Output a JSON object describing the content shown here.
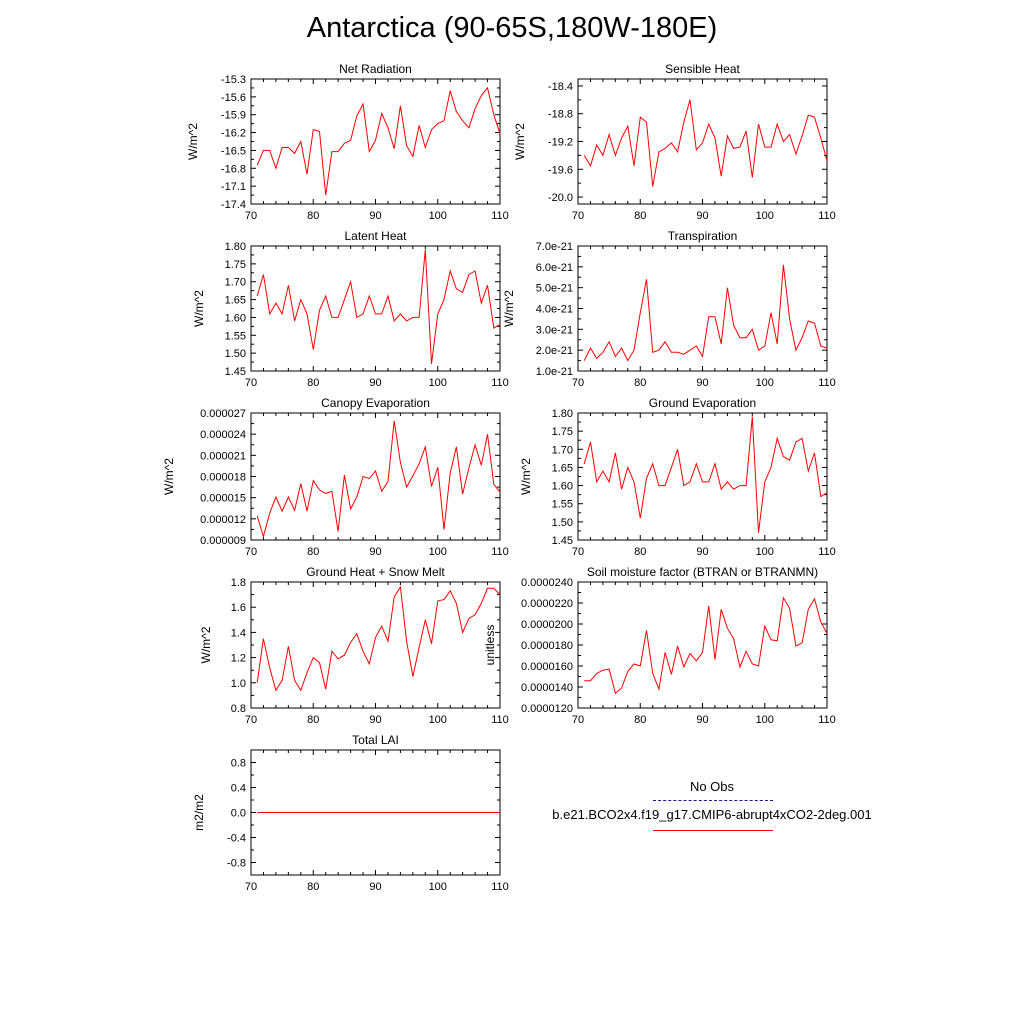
{
  "title": "Antarctica (90-65S,180W-180E)",
  "legend": {
    "obs_label": "No Obs",
    "case_label": "b.e21.BCO2x4.f19_g17.CMIP6-abrupt4xCO2-2deg.001",
    "obs_color": "#1a1a9e",
    "case_color": "#ff0000"
  },
  "chart_data": [
    {
      "type": "line",
      "title": "Net Radiation",
      "ylabel": "W/m^2",
      "xlim": [
        70,
        110
      ],
      "ylim": [
        -17.4,
        -15.3
      ],
      "xticks": [
        "70",
        "80",
        "90",
        "100",
        "110"
      ],
      "xtick_values": [
        70,
        80,
        90,
        100,
        110
      ],
      "yticks": [
        "-17.4",
        "-17.1",
        "-16.8",
        "-16.5",
        "-16.2",
        "-15.9",
        "-15.6",
        "-15.3"
      ],
      "ytick_values": [
        -17.4,
        -17.1,
        -16.8,
        -16.5,
        -16.2,
        -15.9,
        -15.6,
        -15.3
      ],
      "x": [
        71,
        72,
        73,
        74,
        75,
        76,
        77,
        78,
        79,
        80,
        81,
        82,
        83,
        84,
        85,
        86,
        87,
        88,
        89,
        90,
        91,
        92,
        93,
        94,
        95,
        96,
        97,
        98,
        99,
        100,
        101,
        102,
        103,
        104,
        105,
        106,
        107,
        108,
        109,
        110
      ],
      "values": [
        -16.75,
        -16.5,
        -16.5,
        -16.8,
        -16.45,
        -16.45,
        -16.55,
        -16.35,
        -16.9,
        -16.15,
        -16.18,
        -17.25,
        -16.52,
        -16.52,
        -16.38,
        -16.33,
        -15.92,
        -15.72,
        -16.52,
        -16.33,
        -15.88,
        -16.12,
        -16.47,
        -15.75,
        -16.42,
        -16.6,
        -16.08,
        -16.45,
        -16.15,
        -16.05,
        -16.0,
        -15.5,
        -15.85,
        -16.0,
        -16.12,
        -15.8,
        -15.58,
        -15.45,
        -15.9,
        -16.22
      ]
    },
    {
      "type": "line",
      "title": "Sensible Heat",
      "ylabel": "W/m^2",
      "xlim": [
        70,
        110
      ],
      "ylim": [
        -20.1,
        -18.3
      ],
      "xticks": [
        "70",
        "80",
        "90",
        "100",
        "110"
      ],
      "xtick_values": [
        70,
        80,
        90,
        100,
        110
      ],
      "yticks": [
        "-20.0",
        "-19.6",
        "-19.2",
        "-18.8",
        "-18.4"
      ],
      "ytick_values": [
        -20.0,
        -19.6,
        -19.2,
        -18.8,
        -18.4
      ],
      "x": [
        71,
        72,
        73,
        74,
        75,
        76,
        77,
        78,
        79,
        80,
        81,
        82,
        83,
        84,
        85,
        86,
        87,
        88,
        89,
        90,
        91,
        92,
        93,
        94,
        95,
        96,
        97,
        98,
        99,
        100,
        101,
        102,
        103,
        104,
        105,
        106,
        107,
        108,
        109,
        110
      ],
      "values": [
        -19.4,
        -19.55,
        -19.25,
        -19.4,
        -19.1,
        -19.4,
        -19.15,
        -18.98,
        -19.55,
        -18.85,
        -18.92,
        -19.85,
        -19.35,
        -19.3,
        -19.22,
        -19.35,
        -18.92,
        -18.6,
        -19.32,
        -19.22,
        -18.95,
        -19.15,
        -19.7,
        -19.12,
        -19.3,
        -19.28,
        -19.05,
        -19.72,
        -18.95,
        -19.28,
        -19.28,
        -18.95,
        -19.2,
        -19.1,
        -19.38,
        -19.12,
        -18.82,
        -18.85,
        -19.15,
        -19.48
      ]
    },
    {
      "type": "line",
      "title": "Latent Heat",
      "ylabel": "W/m^2",
      "xlim": [
        70,
        110
      ],
      "ylim": [
        1.45,
        1.8
      ],
      "xticks": [
        "70",
        "80",
        "90",
        "100",
        "110"
      ],
      "xtick_values": [
        70,
        80,
        90,
        100,
        110
      ],
      "yticks": [
        "1.45",
        "1.50",
        "1.55",
        "1.60",
        "1.65",
        "1.70",
        "1.75",
        "1.80"
      ],
      "ytick_values": [
        1.45,
        1.5,
        1.55,
        1.6,
        1.65,
        1.7,
        1.75,
        1.8
      ],
      "x": [
        71,
        72,
        73,
        74,
        75,
        76,
        77,
        78,
        79,
        80,
        81,
        82,
        83,
        84,
        85,
        86,
        87,
        88,
        89,
        90,
        91,
        92,
        93,
        94,
        95,
        96,
        97,
        98,
        99,
        100,
        101,
        102,
        103,
        104,
        105,
        106,
        107,
        108,
        109,
        110
      ],
      "values": [
        1.66,
        1.72,
        1.61,
        1.64,
        1.61,
        1.69,
        1.59,
        1.65,
        1.61,
        1.51,
        1.62,
        1.66,
        1.6,
        1.6,
        1.65,
        1.7,
        1.6,
        1.61,
        1.66,
        1.61,
        1.61,
        1.66,
        1.59,
        1.61,
        1.59,
        1.6,
        1.6,
        1.79,
        1.47,
        1.61,
        1.65,
        1.73,
        1.68,
        1.67,
        1.72,
        1.73,
        1.64,
        1.69,
        1.57,
        1.58
      ]
    },
    {
      "type": "line",
      "title": "Transpiration",
      "ylabel": "W/m^2",
      "xlim": [
        70,
        110
      ],
      "ylim": [
        1e-21,
        7e-21
      ],
      "xticks": [
        "70",
        "80",
        "90",
        "100",
        "110"
      ],
      "xtick_values": [
        70,
        80,
        90,
        100,
        110
      ],
      "yticks": [
        "1.0e-21",
        "2.0e-21",
        "3.0e-21",
        "4.0e-21",
        "5.0e-21",
        "6.0e-21",
        "7.0e-21"
      ],
      "ytick_values": [
        1e-21,
        2e-21,
        3e-21,
        4e-21,
        5e-21,
        6e-21,
        7e-21
      ],
      "x": [
        71,
        72,
        73,
        74,
        75,
        76,
        77,
        78,
        79,
        80,
        81,
        82,
        83,
        84,
        85,
        86,
        87,
        88,
        89,
        90,
        91,
        92,
        93,
        94,
        95,
        96,
        97,
        98,
        99,
        100,
        101,
        102,
        103,
        104,
        105,
        106,
        107,
        108,
        109,
        110
      ],
      "values": [
        1.5e-21,
        2.1e-21,
        1.6e-21,
        1.9e-21,
        2.4e-21,
        1.7e-21,
        2.1e-21,
        1.5e-21,
        2e-21,
        3.8e-21,
        5.4e-21,
        1.9e-21,
        2e-21,
        2.4e-21,
        1.9e-21,
        1.9e-21,
        1.8e-21,
        2e-21,
        2.2e-21,
        1.7e-21,
        3.6e-21,
        3.6e-21,
        2.3e-21,
        5e-21,
        3.2e-21,
        2.6e-21,
        2.6e-21,
        3e-21,
        2e-21,
        2.2e-21,
        3.8e-21,
        2.3e-21,
        6.1e-21,
        3.5e-21,
        2e-21,
        2.6e-21,
        3.4e-21,
        3.3e-21,
        2.2e-21,
        2.1e-21
      ]
    },
    {
      "type": "line",
      "title": "Canopy Evaporation",
      "ylabel": "W/m^2",
      "xlim": [
        70,
        110
      ],
      "ylim": [
        9e-06,
        2.7e-05
      ],
      "xticks": [
        "70",
        "80",
        "90",
        "100",
        "110"
      ],
      "xtick_values": [
        70,
        80,
        90,
        100,
        110
      ],
      "yticks": [
        "0.000009",
        "0.000012",
        "0.000015",
        "0.000018",
        "0.000021",
        "0.000024",
        "0.000027"
      ],
      "ytick_values": [
        9e-06,
        1.2e-05,
        1.5e-05,
        1.8e-05,
        2.1e-05,
        2.4e-05,
        2.7e-05
      ],
      "x": [
        71,
        72,
        73,
        74,
        75,
        76,
        77,
        78,
        79,
        80,
        81,
        82,
        83,
        84,
        85,
        86,
        87,
        88,
        89,
        90,
        91,
        92,
        93,
        94,
        95,
        96,
        97,
        98,
        99,
        100,
        101,
        102,
        103,
        104,
        105,
        106,
        107,
        108,
        109,
        110
      ],
      "values": [
        1.24e-05,
        9.5e-06,
        1.28e-05,
        1.51e-05,
        1.31e-05,
        1.51e-05,
        1.32e-05,
        1.7e-05,
        1.31e-05,
        1.74e-05,
        1.61e-05,
        1.56e-05,
        1.59e-05,
        1.02e-05,
        1.82e-05,
        1.34e-05,
        1.51e-05,
        1.8e-05,
        1.77e-05,
        1.88e-05,
        1.59e-05,
        1.73e-05,
        2.59e-05,
        2e-05,
        1.65e-05,
        1.81e-05,
        1.98e-05,
        2.22e-05,
        1.66e-05,
        1.93e-05,
        1.05e-05,
        1.85e-05,
        2.22e-05,
        1.55e-05,
        1.92e-05,
        2.25e-05,
        1.96e-05,
        2.4e-05,
        1.69e-05,
        1.58e-05
      ]
    },
    {
      "type": "line",
      "title": "Ground Evaporation",
      "ylabel": "W/m^2",
      "xlim": [
        70,
        110
      ],
      "ylim": [
        1.45,
        1.8
      ],
      "xticks": [
        "70",
        "80",
        "90",
        "100",
        "110"
      ],
      "xtick_values": [
        70,
        80,
        90,
        100,
        110
      ],
      "yticks": [
        "1.45",
        "1.50",
        "1.55",
        "1.60",
        "1.65",
        "1.70",
        "1.75",
        "1.80"
      ],
      "ytick_values": [
        1.45,
        1.5,
        1.55,
        1.6,
        1.65,
        1.7,
        1.75,
        1.8
      ],
      "x": [
        71,
        72,
        73,
        74,
        75,
        76,
        77,
        78,
        79,
        80,
        81,
        82,
        83,
        84,
        85,
        86,
        87,
        88,
        89,
        90,
        91,
        92,
        93,
        94,
        95,
        96,
        97,
        98,
        99,
        100,
        101,
        102,
        103,
        104,
        105,
        106,
        107,
        108,
        109,
        110
      ],
      "values": [
        1.66,
        1.72,
        1.61,
        1.64,
        1.61,
        1.69,
        1.59,
        1.65,
        1.61,
        1.51,
        1.62,
        1.66,
        1.6,
        1.6,
        1.65,
        1.7,
        1.6,
        1.61,
        1.66,
        1.61,
        1.61,
        1.66,
        1.59,
        1.61,
        1.59,
        1.6,
        1.6,
        1.79,
        1.47,
        1.61,
        1.65,
        1.73,
        1.68,
        1.67,
        1.72,
        1.73,
        1.64,
        1.69,
        1.57,
        1.58
      ]
    },
    {
      "type": "line",
      "title": "Ground Heat + Snow Melt",
      "ylabel": "W/m^2",
      "xlim": [
        70,
        110
      ],
      "ylim": [
        0.8,
        1.8
      ],
      "xticks": [
        "70",
        "80",
        "90",
        "100",
        "110"
      ],
      "xtick_values": [
        70,
        80,
        90,
        100,
        110
      ],
      "yticks": [
        "0.8",
        "1.0",
        "1.2",
        "1.4",
        "1.6",
        "1.8"
      ],
      "ytick_values": [
        0.8,
        1.0,
        1.2,
        1.4,
        1.6,
        1.8
      ],
      "x": [
        71,
        72,
        73,
        74,
        75,
        76,
        77,
        78,
        79,
        80,
        81,
        82,
        83,
        84,
        85,
        86,
        87,
        88,
        89,
        90,
        91,
        92,
        93,
        94,
        95,
        96,
        97,
        98,
        99,
        100,
        101,
        102,
        103,
        104,
        105,
        106,
        107,
        108,
        109,
        110
      ],
      "values": [
        1.0,
        1.35,
        1.12,
        0.94,
        1.02,
        1.29,
        1.02,
        0.94,
        1.08,
        1.2,
        1.16,
        0.95,
        1.25,
        1.19,
        1.22,
        1.32,
        1.39,
        1.25,
        1.15,
        1.36,
        1.45,
        1.33,
        1.68,
        1.76,
        1.33,
        1.05,
        1.28,
        1.5,
        1.31,
        1.65,
        1.66,
        1.73,
        1.63,
        1.4,
        1.51,
        1.54,
        1.63,
        1.75,
        1.75,
        1.7
      ]
    },
    {
      "type": "line",
      "title": "Soil moisture factor (BTRAN or BTRANMN)",
      "ylabel": "unitless",
      "xlim": [
        70,
        110
      ],
      "ylim": [
        1.2e-05,
        2.4e-05
      ],
      "xticks": [
        "70",
        "80",
        "90",
        "100",
        "110"
      ],
      "xtick_values": [
        70,
        80,
        90,
        100,
        110
      ],
      "yticks": [
        "0.0000120",
        "0.0000140",
        "0.0000160",
        "0.0000180",
        "0.0000200",
        "0.0000220",
        "0.0000240"
      ],
      "ytick_values": [
        1.2e-05,
        1.4e-05,
        1.6e-05,
        1.8e-05,
        2e-05,
        2.2e-05,
        2.4e-05
      ],
      "x": [
        71,
        72,
        73,
        74,
        75,
        76,
        77,
        78,
        79,
        80,
        81,
        82,
        83,
        84,
        85,
        86,
        87,
        88,
        89,
        90,
        91,
        92,
        93,
        94,
        95,
        96,
        97,
        98,
        99,
        100,
        101,
        102,
        103,
        104,
        105,
        106,
        107,
        108,
        109,
        110
      ],
      "values": [
        1.46e-05,
        1.46e-05,
        1.53e-05,
        1.56e-05,
        1.57e-05,
        1.34e-05,
        1.39e-05,
        1.55e-05,
        1.62e-05,
        1.6e-05,
        1.94e-05,
        1.53e-05,
        1.38e-05,
        1.73e-05,
        1.52e-05,
        1.79e-05,
        1.59e-05,
        1.72e-05,
        1.65e-05,
        1.73e-05,
        2.17e-05,
        1.66e-05,
        2.14e-05,
        1.96e-05,
        1.86e-05,
        1.59e-05,
        1.74e-05,
        1.62e-05,
        1.6e-05,
        1.98e-05,
        1.85e-05,
        1.84e-05,
        2.25e-05,
        2.15e-05,
        1.79e-05,
        1.82e-05,
        2.14e-05,
        2.24e-05,
        2.02e-05,
        1.91e-05
      ]
    },
    {
      "type": "line",
      "title": "Total LAI",
      "ylabel": "m2/m2",
      "xlim": [
        70,
        110
      ],
      "ylim": [
        -1.0,
        1.0
      ],
      "xticks": [
        "70",
        "80",
        "90",
        "100",
        "110"
      ],
      "xtick_values": [
        70,
        80,
        90,
        100,
        110
      ],
      "yticks": [
        "-0.8",
        "-0.4",
        "0.0",
        "0.4",
        "0.8"
      ],
      "ytick_values": [
        -0.8,
        -0.4,
        0.0,
        0.4,
        0.8
      ],
      "x": [
        71,
        110
      ],
      "values": [
        0.0,
        0.0
      ]
    }
  ]
}
